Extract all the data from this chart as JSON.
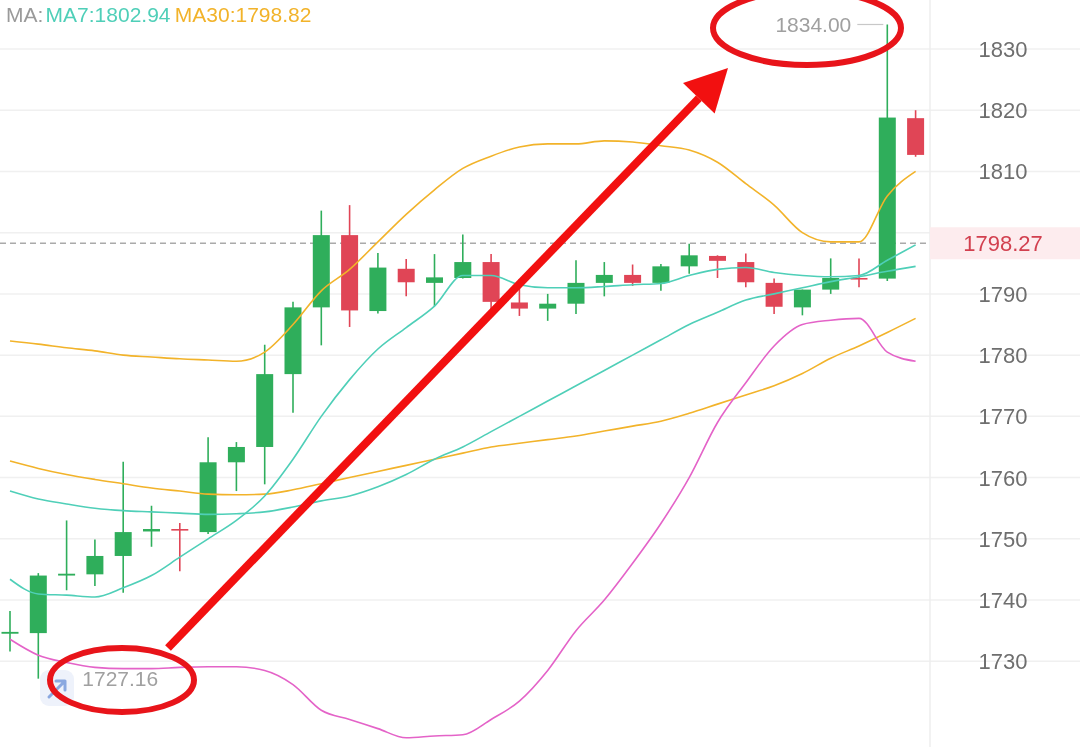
{
  "chart_data": {
    "type": "candlestick",
    "categories": [
      null,
      null,
      null,
      null,
      null,
      null,
      null,
      null,
      null,
      null,
      null,
      null,
      null,
      null,
      null,
      null,
      null,
      null,
      null,
      null,
      null,
      null,
      null,
      null,
      null,
      null,
      null,
      null,
      null,
      null,
      null,
      null,
      null
    ],
    "ohlc": [
      [
        1734.5,
        1738.2,
        1731.6,
        1734.8
      ],
      [
        1734.6,
        1744.4,
        1727.16,
        1744.0
      ],
      [
        1744.0,
        1753.0,
        1741.6,
        1744.3
      ],
      [
        1744.2,
        1749.9,
        1742.3,
        1747.2
      ],
      [
        1747.2,
        1762.6,
        1741.2,
        1751.1
      ],
      [
        1751.2,
        1755.4,
        1748.7,
        1751.6
      ],
      [
        1751.6,
        1752.6,
        1744.7,
        1751.4
      ],
      [
        1751.1,
        1766.6,
        1750.8,
        1762.5
      ],
      [
        1762.5,
        1765.8,
        1757.8,
        1765.0
      ],
      [
        1765.0,
        1781.7,
        1758.9,
        1776.9
      ],
      [
        1776.9,
        1788.7,
        1770.6,
        1787.8
      ],
      [
        1787.8,
        1803.6,
        1781.6,
        1799.6
      ],
      [
        1799.6,
        1804.5,
        1784.6,
        1787.3
      ],
      [
        1787.2,
        1796.7,
        1786.8,
        1794.3
      ],
      [
        1794.1,
        1795.7,
        1789.6,
        1791.9
      ],
      [
        1791.8,
        1796.5,
        1788.0,
        1792.7
      ],
      [
        1792.6,
        1799.7,
        1792.5,
        1795.2
      ],
      [
        1795.2,
        1796.5,
        1787.2,
        1788.7
      ],
      [
        1788.6,
        1792.4,
        1786.4,
        1787.6
      ],
      [
        1787.6,
        1790.0,
        1785.6,
        1788.4
      ],
      [
        1788.4,
        1795.5,
        1786.7,
        1791.8
      ],
      [
        1791.8,
        1795.2,
        1789.6,
        1793.1
      ],
      [
        1793.1,
        1794.8,
        1791.3,
        1791.8
      ],
      [
        1791.8,
        1794.9,
        1790.5,
        1794.5
      ],
      [
        1794.5,
        1798.2,
        1793.3,
        1796.3
      ],
      [
        1796.2,
        1796.3,
        1792.6,
        1795.4
      ],
      [
        1795.2,
        1796.6,
        1791.1,
        1791.9
      ],
      [
        1791.8,
        1792.5,
        1786.7,
        1787.9
      ],
      [
        1787.8,
        1790.7,
        1786.5,
        1790.7
      ],
      [
        1790.7,
        1795.8,
        1790.0,
        1792.6
      ],
      [
        1792.6,
        1795.8,
        1791.1,
        1792.4
      ],
      [
        1792.5,
        1834.0,
        1792.1,
        1818.8
      ],
      [
        1818.7,
        1820.0,
        1812.4,
        1812.7
      ]
    ],
    "colors": [
      "#2fae5b",
      "#2fae5b",
      "#2fae5b",
      "#2fae5b",
      "#2fae5b",
      "#2fae5b",
      "#e04556",
      "#2fae5b",
      "#2fae5b",
      "#2fae5b",
      "#2fae5b",
      "#2fae5b",
      "#e04556",
      "#2fae5b",
      "#e04556",
      "#2fae5b",
      "#2fae5b",
      "#e04556",
      "#e04556",
      "#2fae5b",
      "#2fae5b",
      "#2fae5b",
      "#e04556",
      "#2fae5b",
      "#2fae5b",
      "#e04556",
      "#e04556",
      "#e04556",
      "#2fae5b",
      "#2fae5b",
      "#e04556",
      "#2fae5b",
      "#e04556"
    ],
    "series": [
      {
        "type": "line",
        "color": "#f2b32a",
        "values": [
          1782.3,
          1781.8,
          1781.2,
          1780.7,
          1780.0,
          1779.7,
          1779.4,
          1779.2,
          1779.0,
          1780.5,
          1785,
          1790.5,
          1794,
          1798.5,
          1803,
          1807,
          1810.5,
          1812.5,
          1814,
          1814.5,
          1814.5,
          1815,
          1814.8,
          1814.2,
          1813.5,
          1811.5,
          1808,
          1804.5,
          1800,
          1798.5,
          1798.5,
          1806,
          1810
        ]
      },
      {
        "type": "line",
        "color": "#f2b32a",
        "values": [
          1762.7,
          1761.5,
          1760.5,
          1759.7,
          1759,
          1758.3,
          1757.8,
          1757.3,
          1757.2,
          1757.3,
          1758,
          1759,
          1760,
          1761,
          1762,
          1763,
          1764,
          1765,
          1765.6,
          1766.2,
          1766.8,
          1767.6,
          1768.4,
          1769.2,
          1770.5,
          1772,
          1773.5,
          1775,
          1777,
          1779.5,
          1781.5,
          1783.7,
          1786
        ]
      },
      {
        "type": "line",
        "color": "#4fcfb8",
        "values": [
          1757.8,
          1756.5,
          1755.7,
          1755,
          1754.6,
          1754.4,
          1754.2,
          1754,
          1754.1,
          1754.4,
          1755.2,
          1756.2,
          1757,
          1758.5,
          1760.5,
          1763,
          1765,
          1767.5,
          1770,
          1772.5,
          1775,
          1777.5,
          1780,
          1782.5,
          1785,
          1787,
          1789,
          1790,
          1791,
          1792,
          1792.8,
          1793.7,
          1794.5
        ]
      },
      {
        "type": "line",
        "color": "#4fcfb8",
        "values": [
          1743.4,
          1741,
          1740.8,
          1740.5,
          1742,
          1744,
          1747,
          1750,
          1753,
          1757,
          1763,
          1770,
          1776,
          1781,
          1784.5,
          1788,
          1793,
          1793,
          1791.5,
          1791,
          1791,
          1791.2,
          1791.5,
          1791.7,
          1793,
          1794,
          1794.3,
          1793.5,
          1793,
          1792.8,
          1793,
          1795.5,
          1798
        ]
      },
      {
        "type": "line",
        "color": "#e463c8",
        "values": [
          1733.6,
          1731,
          1729.8,
          1729,
          1728.8,
          1728.8,
          1729,
          1729.1,
          1729.1,
          1728.5,
          1726.2,
          1722,
          1720.5,
          1719,
          1717.5,
          1717.8,
          1718,
          1720.5,
          1723.5,
          1728.5,
          1735,
          1740,
          1746,
          1752.5,
          1760,
          1769,
          1775.5,
          1781.5,
          1785,
          1785.7,
          1786,
          1780.5,
          1779
        ]
      }
    ],
    "ylim": [
      1716,
      1838
    ],
    "yticks": [
      1730,
      1740,
      1750,
      1760,
      1770,
      1780,
      1790,
      {
        "value": 1800,
        "label": null
      },
      1810,
      1820,
      1830
    ],
    "grid": "y",
    "tick_labels": "y",
    "ref_lines": [
      {
        "axis": "y",
        "value": 1798.27,
        "label": "1798.27",
        "color": "#aaaaaa",
        "line_style": "dashed"
      }
    ],
    "annotations": [
      "MA:",
      "MA7:1802.94",
      "MA30:1798.82",
      "1834.00",
      "1727.16"
    ]
  }
}
